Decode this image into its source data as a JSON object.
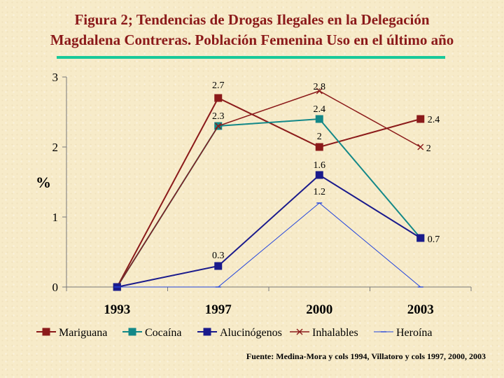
{
  "title": {
    "line1": "Figura 2; Tendencias de Drogas Ilegales en  la Delegación",
    "line2": "Magdalena Contreras. Población Femenina Uso en el último año"
  },
  "source": "Fuente: Medina-Mora y cols 1994, Villatoro y cols 1997, 2000, 2003",
  "colors": {
    "title": "#8b1a1a",
    "accent_rule": "#19c99a"
  },
  "chart_data": {
    "type": "line",
    "categories": [
      "1993",
      "1997",
      "2000",
      "2003"
    ],
    "ylabel": "%",
    "ylim": [
      0,
      3
    ],
    "yticks": [
      0,
      1,
      2,
      3
    ],
    "grid": false,
    "legend": "bottom",
    "series": [
      {
        "name": "Mariguana",
        "values": [
          0,
          2.7,
          2,
          2.4
        ],
        "labels": [
          "",
          "2.7",
          "2",
          "2.4"
        ],
        "color": "#8b1a1a",
        "marker": "square",
        "stroke": 2
      },
      {
        "name": "Cocaína",
        "values": [
          0,
          2.3,
          2.4,
          0.7
        ],
        "labels": [
          "",
          "2.3",
          "2.4",
          ""
        ],
        "color": "#138888",
        "marker": "square",
        "stroke": 2
      },
      {
        "name": "Alucinógenos",
        "values": [
          0,
          0.3,
          1.6,
          0.7
        ],
        "labels": [
          "",
          "0.3",
          "1.6",
          "0.7"
        ],
        "color": "#1a1a8c",
        "marker": "square",
        "stroke": 2
      },
      {
        "name": "Inhalables",
        "values": [
          0,
          2.3,
          2.8,
          2
        ],
        "labels": [
          "",
          "",
          "2.8",
          "2"
        ],
        "color": "#8b1a1a",
        "marker": "x",
        "stroke": 1.5
      },
      {
        "name": "Heroína",
        "values": [
          0,
          0,
          1.2,
          0
        ],
        "labels": [
          "",
          "",
          "1.2",
          ""
        ],
        "color": "#2244dd",
        "marker": "dash",
        "stroke": 1
      }
    ]
  }
}
